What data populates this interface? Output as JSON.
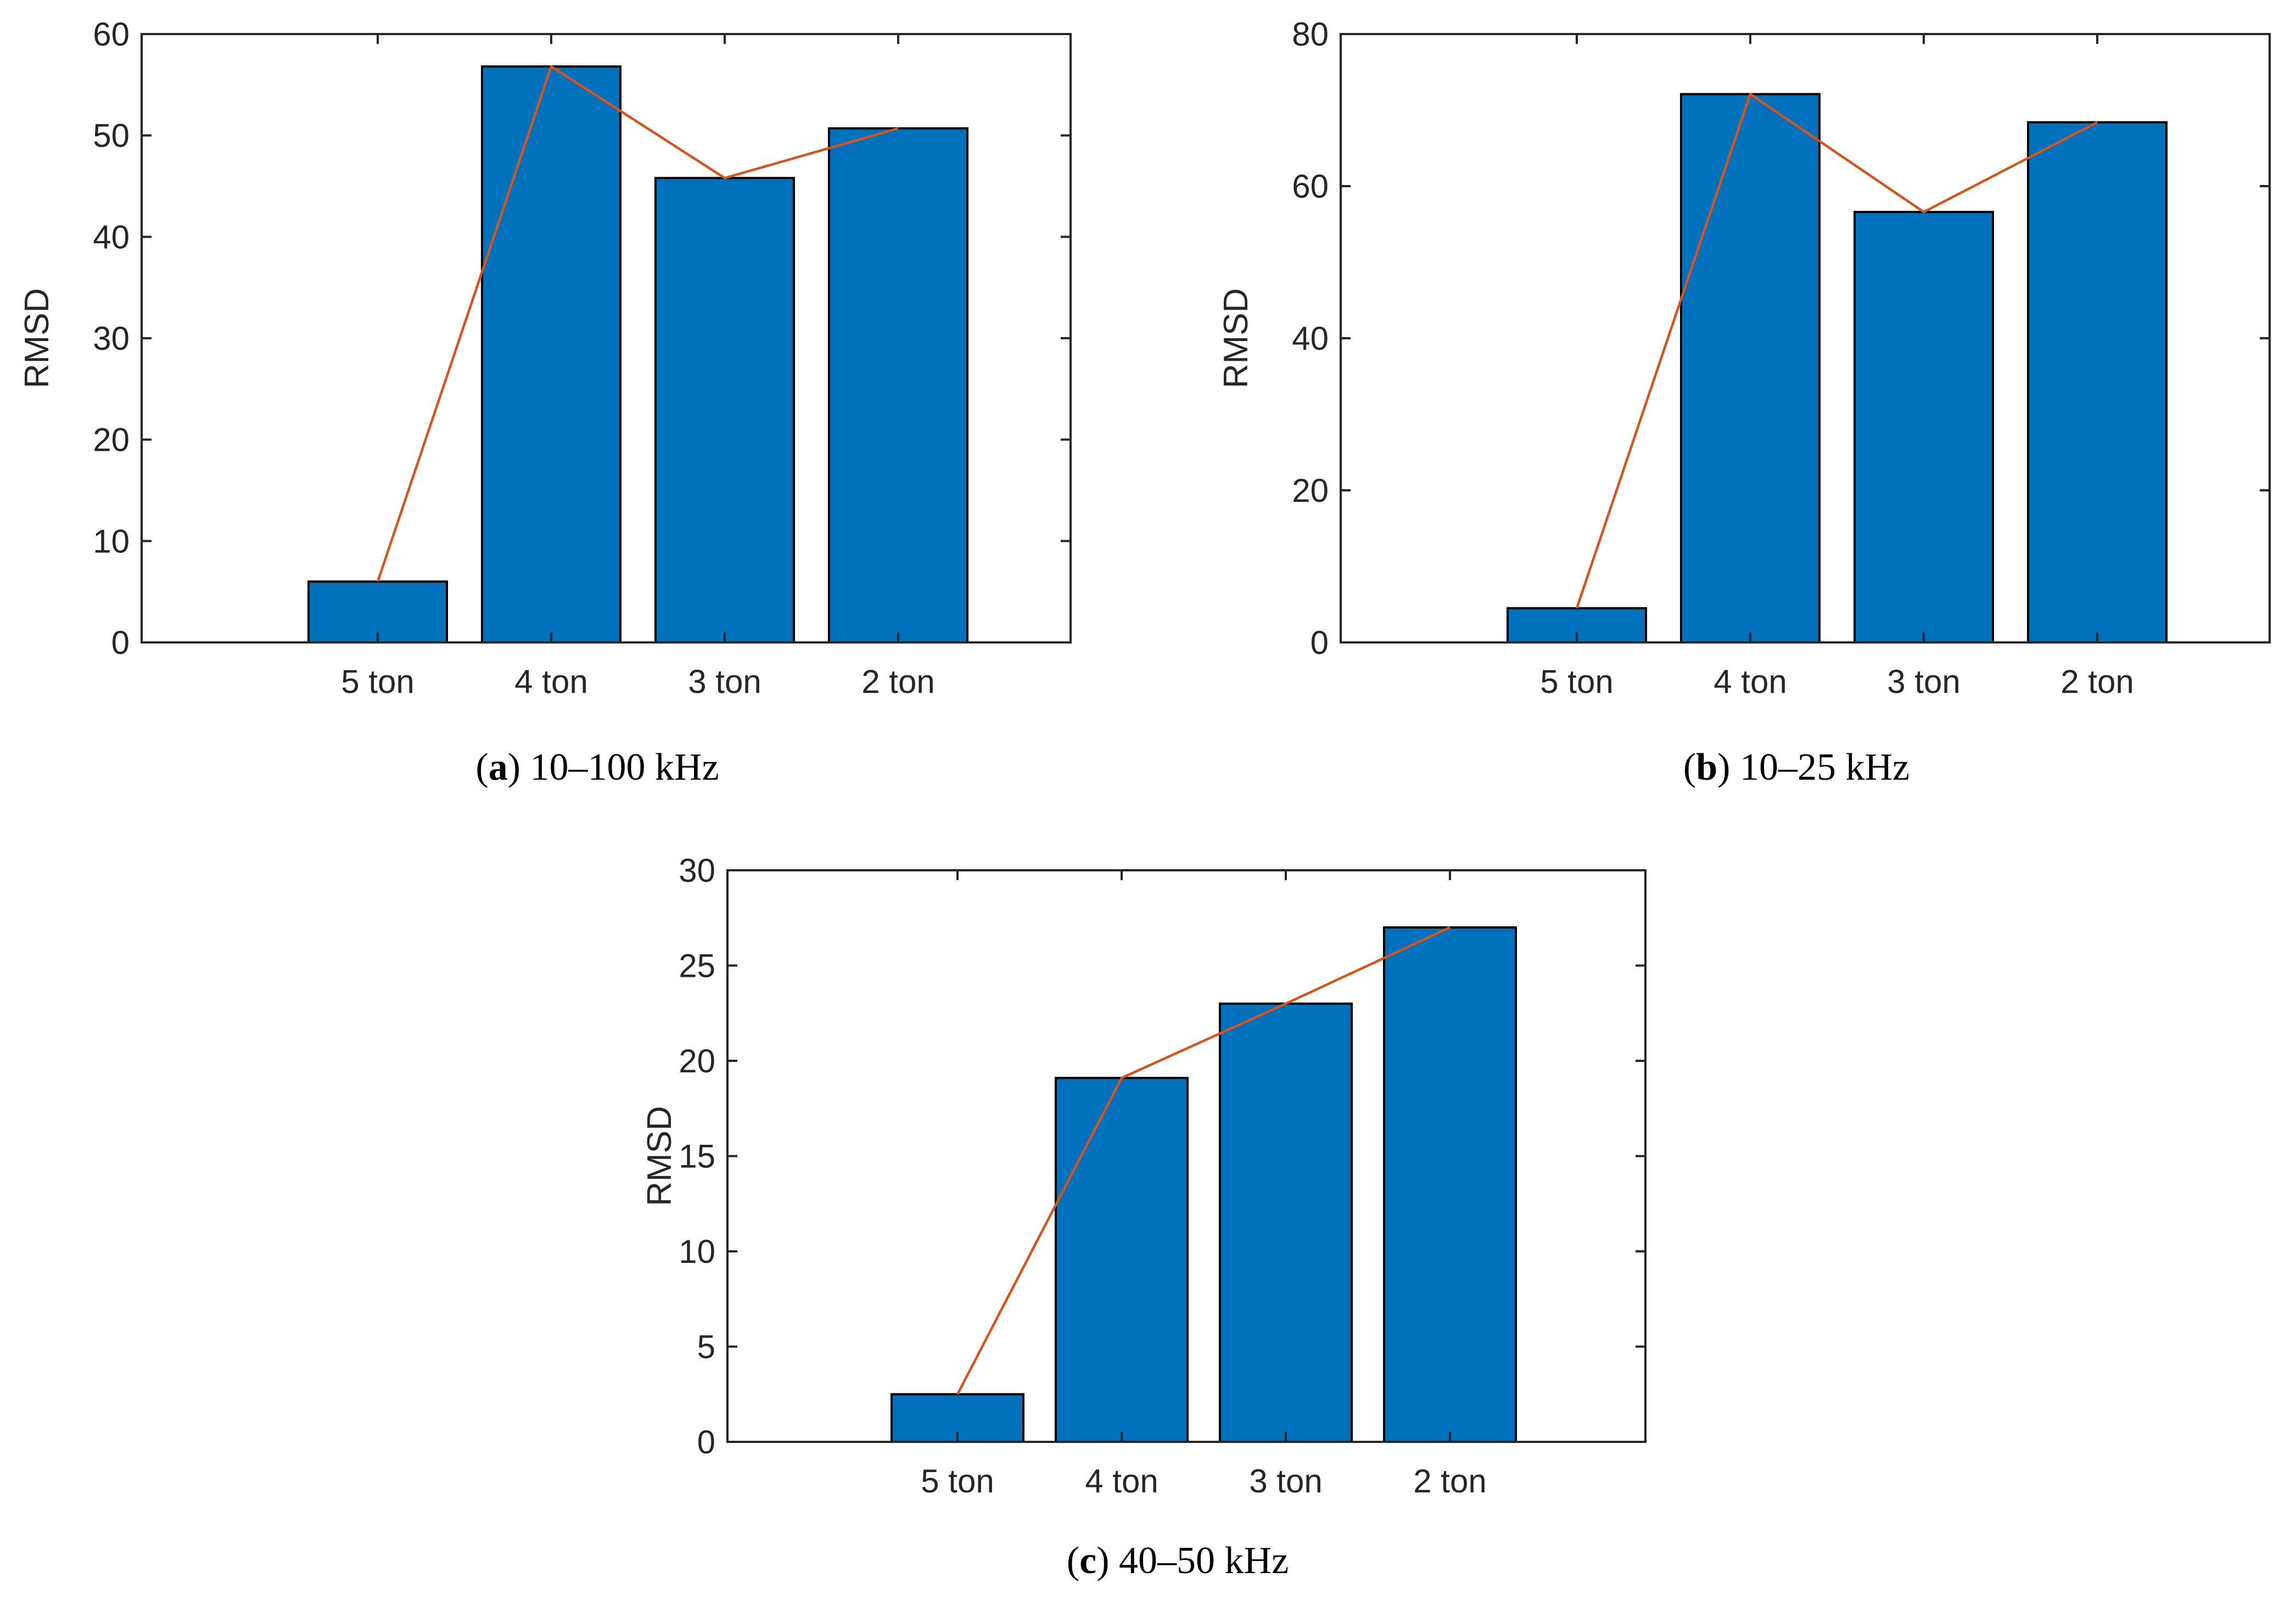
{
  "colors": {
    "bar": "#0072BD",
    "line": "#D95319",
    "axis": "#262626"
  },
  "chart_data": [
    {
      "type": "bar",
      "panel": "a",
      "caption": "10–100 kHz",
      "categories": [
        "5 ton",
        "4 ton",
        "3 ton",
        "2 ton"
      ],
      "series": [
        {
          "name": "RMSD",
          "values": [
            6,
            56.8,
            45.8,
            50.7
          ]
        }
      ],
      "overlay_line": [
        6,
        56.8,
        45.8,
        50.7
      ],
      "ylabel": "RMSD",
      "ylim": [
        0,
        60
      ],
      "yticks": [
        0,
        10,
        20,
        30,
        40,
        50,
        60
      ]
    },
    {
      "type": "bar",
      "panel": "b",
      "caption": "10–25 kHz",
      "categories": [
        "5 ton",
        "4 ton",
        "3 ton",
        "2 ton"
      ],
      "series": [
        {
          "name": "RMSD",
          "values": [
            4.5,
            72.1,
            56.6,
            68.4
          ]
        }
      ],
      "overlay_line": [
        4.5,
        72.1,
        56.6,
        68.4
      ],
      "ylabel": "RMSD",
      "ylim": [
        0,
        80
      ],
      "yticks": [
        0,
        20,
        40,
        60,
        80
      ]
    },
    {
      "type": "bar",
      "panel": "c",
      "caption": "40–50 kHz",
      "categories": [
        "5 ton",
        "4 ton",
        "3 ton",
        "2 ton"
      ],
      "series": [
        {
          "name": "RMSD",
          "values": [
            2.5,
            19.1,
            23,
            27
          ]
        }
      ],
      "overlay_line": [
        2.5,
        19.1,
        23,
        27
      ],
      "ylabel": "RMSD",
      "ylim": [
        0,
        30
      ],
      "yticks": [
        0,
        5,
        10,
        15,
        20,
        25,
        30
      ]
    }
  ]
}
